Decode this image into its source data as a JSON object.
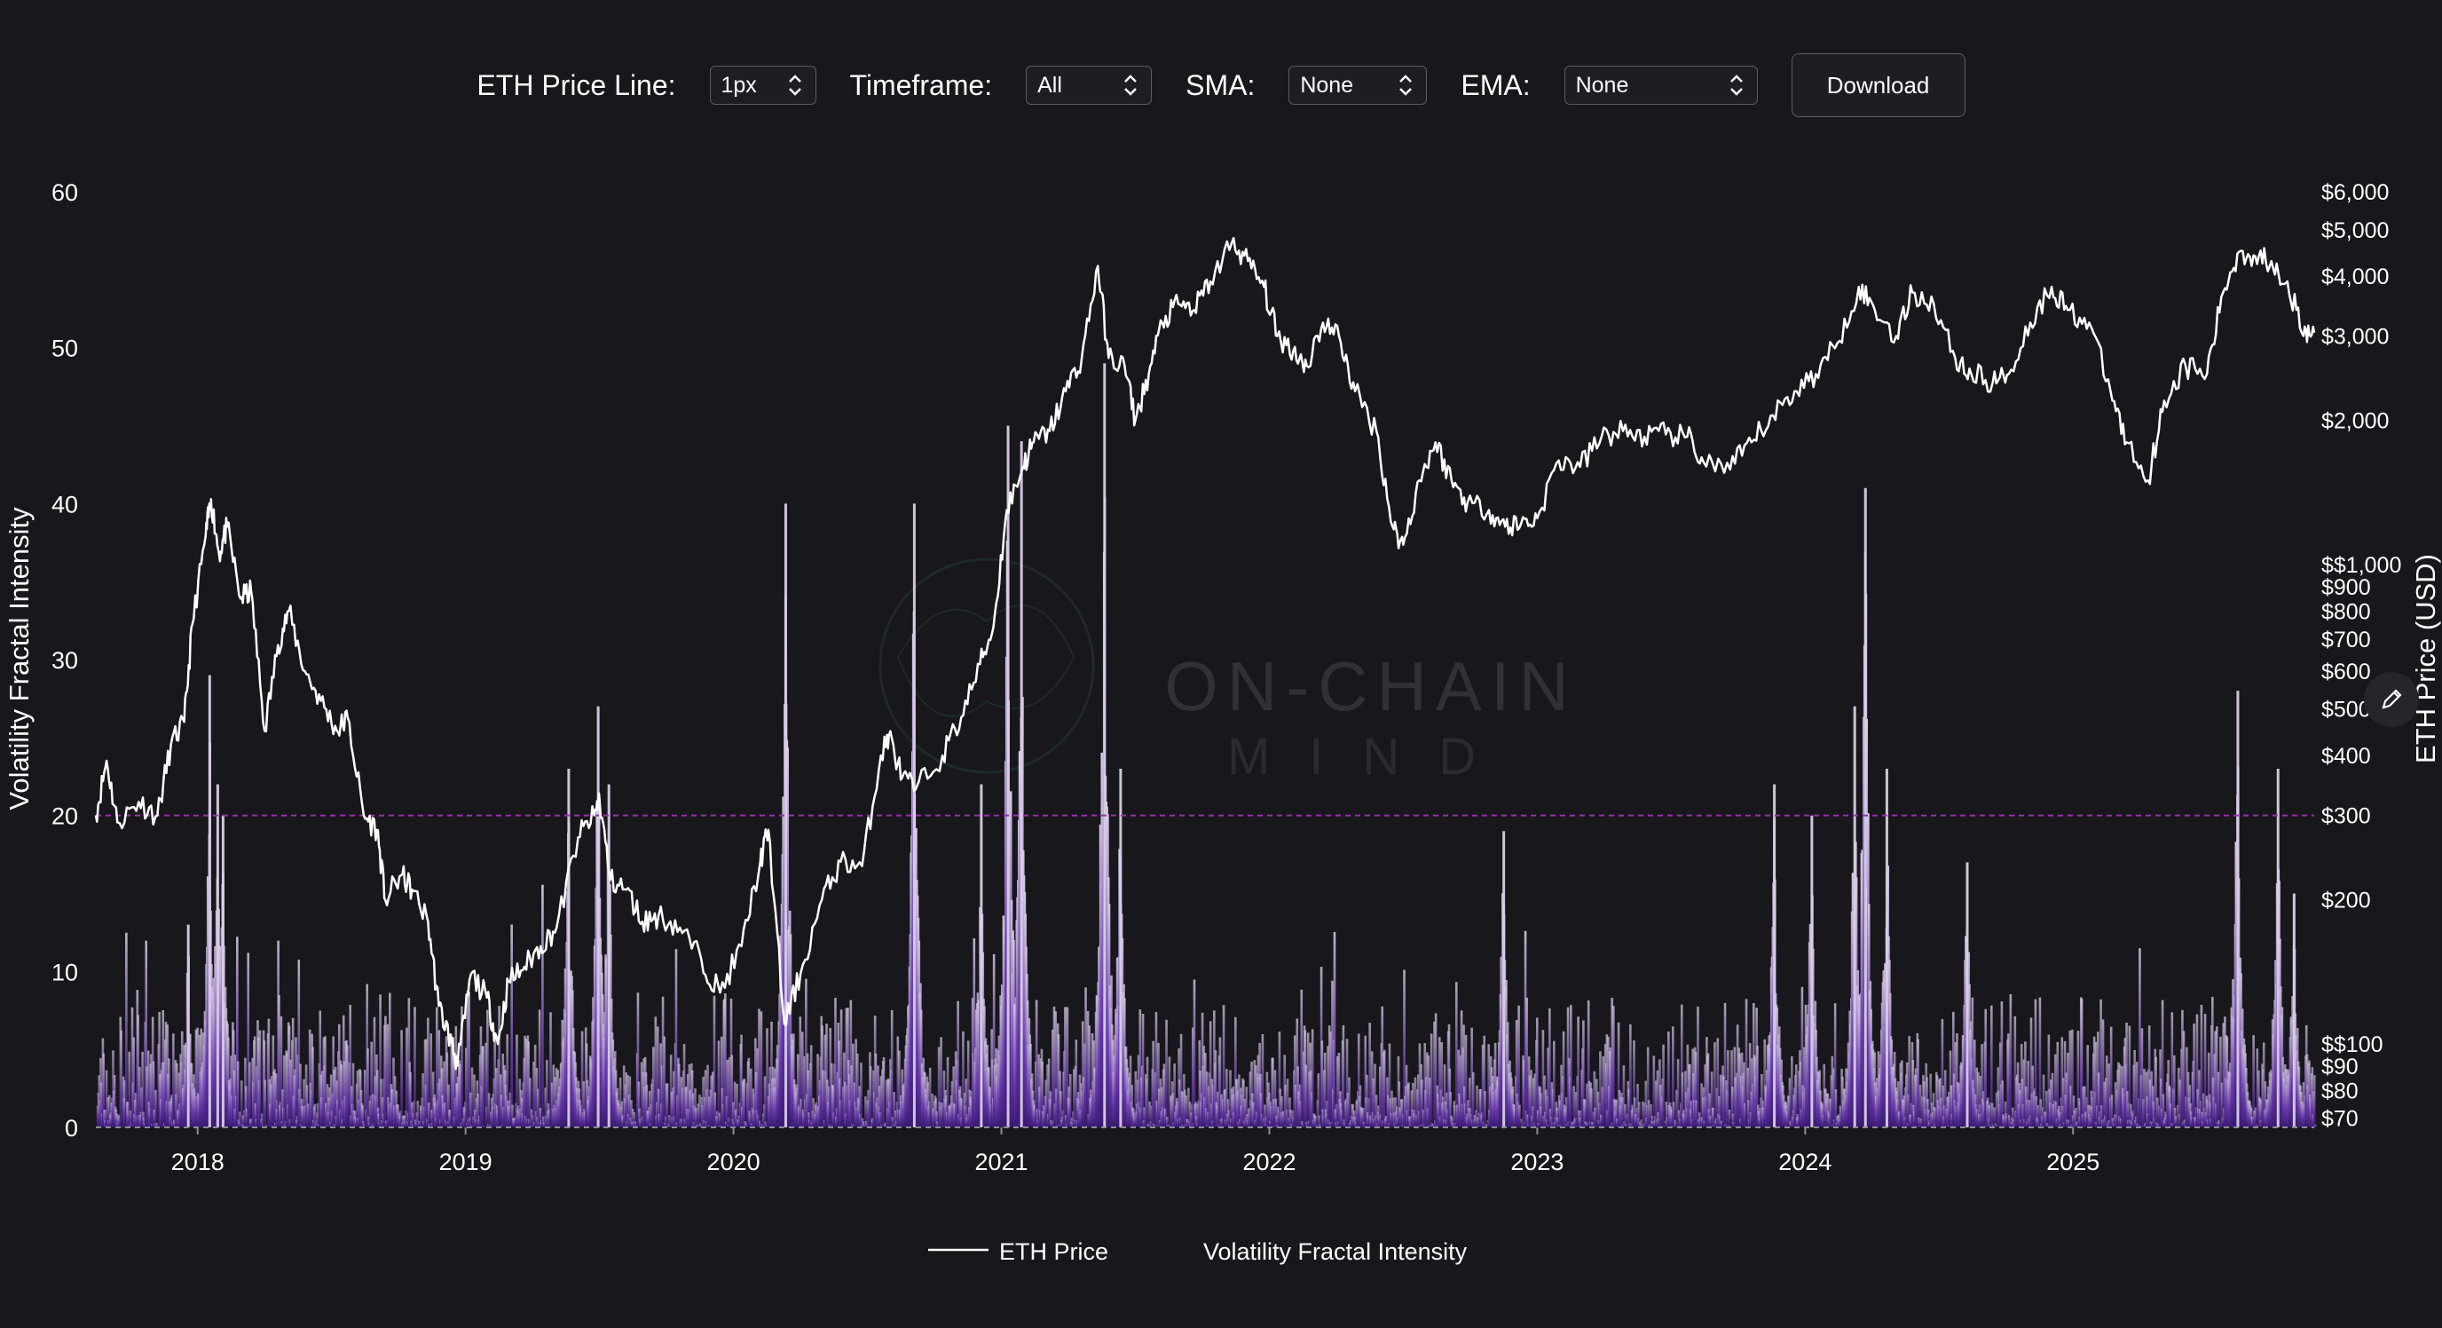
{
  "controls": {
    "price_line_label": "ETH Price Line:",
    "price_line_value": "1px",
    "timeframe_label": "Timeframe:",
    "timeframe_value": "All",
    "sma_label": "SMA:",
    "sma_value": "None",
    "ema_label": "EMA:",
    "ema_value": "None",
    "download_label": "Download"
  },
  "watermark": {
    "line1": "ON-CHAIN",
    "line2": "MIND"
  },
  "colors": {
    "background": "#18171c",
    "price_line": "#ffffff",
    "bar_low": "#6a3bb0",
    "bar_high": "#c9b8d8",
    "threshold": "#9b2fae"
  },
  "chart_data": {
    "type": "line+bar",
    "title": "",
    "x_range": [
      2017.62,
      2025.9
    ],
    "x_ticks": [
      {
        "value": 2018,
        "label": "2018"
      },
      {
        "value": 2019,
        "label": "2019"
      },
      {
        "value": 2020,
        "label": "2020"
      },
      {
        "value": 2021,
        "label": "2021"
      },
      {
        "value": 2022,
        "label": "2022"
      },
      {
        "value": 2023,
        "label": "2023"
      },
      {
        "value": 2024,
        "label": "2024"
      },
      {
        "value": 2025,
        "label": "2025"
      }
    ],
    "y_left": {
      "label": "Volatility Fractal Intensity",
      "range": [
        0,
        60
      ],
      "ticks": [
        {
          "value": 0,
          "label": "0"
        },
        {
          "value": 10,
          "label": "10"
        },
        {
          "value": 20,
          "label": "20"
        },
        {
          "value": 30,
          "label": "30"
        },
        {
          "value": 40,
          "label": "40"
        },
        {
          "value": 50,
          "label": "50"
        },
        {
          "value": 60,
          "label": "60"
        }
      ]
    },
    "y_right": {
      "label": "ETH Price (USD)",
      "scale": "log",
      "range": [
        67,
        6000
      ],
      "ticks": [
        {
          "value": 70,
          "label": "$70"
        },
        {
          "value": 80,
          "label": "$80"
        },
        {
          "value": 90,
          "label": "$90"
        },
        {
          "value": 100,
          "label": "$$100"
        },
        {
          "value": 200,
          "label": "$200"
        },
        {
          "value": 300,
          "label": "$300"
        },
        {
          "value": 400,
          "label": "$400"
        },
        {
          "value": 500,
          "label": "$500"
        },
        {
          "value": 600,
          "label": "$600"
        },
        {
          "value": 700,
          "label": "$700"
        },
        {
          "value": 800,
          "label": "$800"
        },
        {
          "value": 900,
          "label": "$900"
        },
        {
          "value": 1000,
          "label": "$$1,000"
        },
        {
          "value": 2000,
          "label": "$2,000"
        },
        {
          "value": 3000,
          "label": "$3,000"
        },
        {
          "value": 4000,
          "label": "$4,000"
        },
        {
          "value": 5000,
          "label": "$5,000"
        },
        {
          "value": 6000,
          "label": "$6,000"
        }
      ]
    },
    "threshold": 20,
    "legend": [
      {
        "name": "ETH Price",
        "style": "line"
      },
      {
        "name": "Volatility Fractal Intensity",
        "style": "bar"
      }
    ],
    "series_price": {
      "name": "ETH Price",
      "points": [
        [
          2017.62,
          300
        ],
        [
          2017.66,
          390
        ],
        [
          2017.7,
          290
        ],
        [
          2017.78,
          320
        ],
        [
          2017.85,
          300
        ],
        [
          2017.9,
          420
        ],
        [
          2017.95,
          470
        ],
        [
          2017.98,
          750
        ],
        [
          2018.03,
          1150
        ],
        [
          2018.05,
          1370
        ],
        [
          2018.08,
          1050
        ],
        [
          2018.11,
          1200
        ],
        [
          2018.16,
          850
        ],
        [
          2018.2,
          880
        ],
        [
          2018.25,
          450
        ],
        [
          2018.3,
          680
        ],
        [
          2018.34,
          800
        ],
        [
          2018.4,
          600
        ],
        [
          2018.46,
          520
        ],
        [
          2018.52,
          450
        ],
        [
          2018.56,
          480
        ],
        [
          2018.62,
          300
        ],
        [
          2018.67,
          280
        ],
        [
          2018.7,
          200
        ],
        [
          2018.76,
          225
        ],
        [
          2018.8,
          210
        ],
        [
          2018.86,
          180
        ],
        [
          2018.9,
          120
        ],
        [
          2018.95,
          100
        ],
        [
          2018.97,
          90
        ],
        [
          2019.02,
          140
        ],
        [
          2019.08,
          125
        ],
        [
          2019.12,
          100
        ],
        [
          2019.16,
          135
        ],
        [
          2019.22,
          145
        ],
        [
          2019.28,
          160
        ],
        [
          2019.34,
          175
        ],
        [
          2019.42,
          270
        ],
        [
          2019.48,
          300
        ],
        [
          2019.5,
          325
        ],
        [
          2019.54,
          220
        ],
        [
          2019.6,
          210
        ],
        [
          2019.66,
          180
        ],
        [
          2019.72,
          185
        ],
        [
          2019.8,
          175
        ],
        [
          2019.88,
          150
        ],
        [
          2019.95,
          128
        ],
        [
          2020.03,
          160
        ],
        [
          2020.1,
          240
        ],
        [
          2020.13,
          280
        ],
        [
          2020.19,
          110
        ],
        [
          2020.25,
          140
        ],
        [
          2020.33,
          200
        ],
        [
          2020.4,
          240
        ],
        [
          2020.48,
          235
        ],
        [
          2020.55,
          400
        ],
        [
          2020.58,
          440
        ],
        [
          2020.63,
          360
        ],
        [
          2020.68,
          340
        ],
        [
          2020.78,
          400
        ],
        [
          2020.85,
          480
        ],
        [
          2020.92,
          620
        ],
        [
          2020.97,
          740
        ],
        [
          2021.02,
          1300
        ],
        [
          2021.08,
          1600
        ],
        [
          2021.12,
          1800
        ],
        [
          2021.18,
          1900
        ],
        [
          2021.24,
          2300
        ],
        [
          2021.3,
          2700
        ],
        [
          2021.36,
          4200
        ],
        [
          2021.4,
          2700
        ],
        [
          2021.46,
          2600
        ],
        [
          2021.5,
          2000
        ],
        [
          2021.55,
          2500
        ],
        [
          2021.6,
          3200
        ],
        [
          2021.66,
          3500
        ],
        [
          2021.72,
          3400
        ],
        [
          2021.78,
          3900
        ],
        [
          2021.86,
          4700
        ],
        [
          2021.92,
          4300
        ],
        [
          2021.98,
          3800
        ],
        [
          2022.03,
          3000
        ],
        [
          2022.09,
          2800
        ],
        [
          2022.14,
          2600
        ],
        [
          2022.2,
          3200
        ],
        [
          2022.26,
          3000
        ],
        [
          2022.32,
          2300
        ],
        [
          2022.4,
          1900
        ],
        [
          2022.46,
          1200
        ],
        [
          2022.5,
          1100
        ],
        [
          2022.56,
          1500
        ],
        [
          2022.62,
          1800
        ],
        [
          2022.68,
          1500
        ],
        [
          2022.74,
          1350
        ],
        [
          2022.82,
          1300
        ],
        [
          2022.88,
          1200
        ],
        [
          2022.94,
          1220
        ],
        [
          2023.0,
          1250
        ],
        [
          2023.08,
          1650
        ],
        [
          2023.16,
          1600
        ],
        [
          2023.24,
          1850
        ],
        [
          2023.32,
          1900
        ],
        [
          2023.4,
          1850
        ],
        [
          2023.48,
          1870
        ],
        [
          2023.56,
          1850
        ],
        [
          2023.62,
          1640
        ],
        [
          2023.72,
          1580
        ],
        [
          2023.8,
          1800
        ],
        [
          2023.88,
          2050
        ],
        [
          2023.96,
          2300
        ],
        [
          2024.04,
          2500
        ],
        [
          2024.12,
          2900
        ],
        [
          2024.2,
          3800
        ],
        [
          2024.26,
          3400
        ],
        [
          2024.34,
          3000
        ],
        [
          2024.4,
          3700
        ],
        [
          2024.48,
          3500
        ],
        [
          2024.56,
          2700
        ],
        [
          2024.62,
          2500
        ],
        [
          2024.7,
          2400
        ],
        [
          2024.76,
          2500
        ],
        [
          2024.84,
          3200
        ],
        [
          2024.92,
          3800
        ],
        [
          2024.98,
          3400
        ],
        [
          2025.06,
          3200
        ],
        [
          2025.14,
          2300
        ],
        [
          2025.2,
          1800
        ],
        [
          2025.28,
          1500
        ],
        [
          2025.34,
          2200
        ],
        [
          2025.42,
          2600
        ],
        [
          2025.5,
          2500
        ],
        [
          2025.56,
          3700
        ],
        [
          2025.62,
          4500
        ],
        [
          2025.68,
          4400
        ],
        [
          2025.74,
          4300
        ],
        [
          2025.8,
          3900
        ],
        [
          2025.86,
          3000
        ],
        [
          2025.9,
          3050
        ]
      ]
    },
    "series_vfi": {
      "name": "Volatility Fractal Intensity",
      "description": "daily bars, peaks listed as [year, value]",
      "peaks": [
        [
          2017.96,
          13
        ],
        [
          2018.04,
          29
        ],
        [
          2018.07,
          22
        ],
        [
          2018.09,
          20
        ],
        [
          2019.38,
          23
        ],
        [
          2019.49,
          27
        ],
        [
          2019.53,
          22
        ],
        [
          2020.19,
          40
        ],
        [
          2020.67,
          40
        ],
        [
          2020.92,
          22
        ],
        [
          2021.02,
          45
        ],
        [
          2021.07,
          44
        ],
        [
          2021.38,
          49
        ],
        [
          2021.44,
          23
        ],
        [
          2022.87,
          19
        ],
        [
          2023.88,
          22
        ],
        [
          2024.02,
          20
        ],
        [
          2024.18,
          27
        ],
        [
          2024.22,
          41
        ],
        [
          2024.3,
          23
        ],
        [
          2024.6,
          17
        ],
        [
          2025.61,
          28
        ],
        [
          2025.76,
          23
        ],
        [
          2025.82,
          15
        ]
      ]
    }
  }
}
